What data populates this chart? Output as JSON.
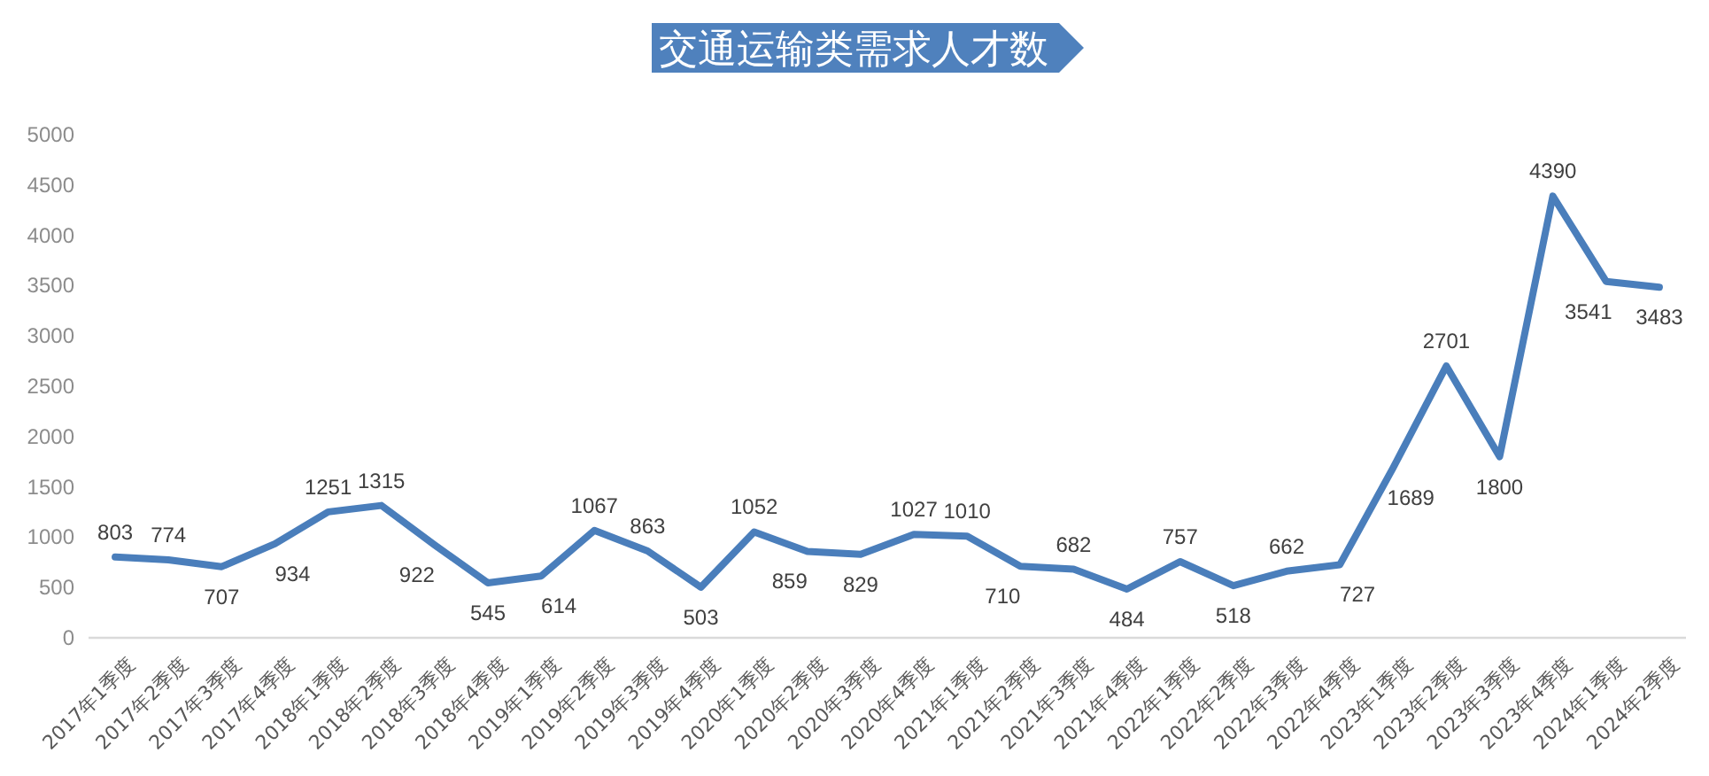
{
  "chart_data": {
    "type": "line",
    "title": "交通运输类需求人才数",
    "categories": [
      "2017年1季度",
      "2017年2季度",
      "2017年3季度",
      "2017年4季度",
      "2018年1季度",
      "2018年2季度",
      "2018年3季度",
      "2018年4季度",
      "2019年1季度",
      "2019年2季度",
      "2019年3季度",
      "2019年4季度",
      "2020年1季度",
      "2020年2季度",
      "2020年3季度",
      "2020年4季度",
      "2021年1季度",
      "2021年2季度",
      "2021年3季度",
      "2021年4季度",
      "2022年1季度",
      "2022年2季度",
      "2022年3季度",
      "2022年4季度",
      "2023年1季度",
      "2023年2季度",
      "2023年3季度",
      "2023年4季度",
      "2024年1季度",
      "2024年2季度"
    ],
    "series": [
      {
        "color": "#4a7ebb",
        "values": [
          803,
          774,
          707,
          934,
          1251,
          1315,
          922,
          545,
          614,
          1067,
          863,
          503,
          1052,
          859,
          829,
          1027,
          1010,
          710,
          682,
          484,
          757,
          518,
          662,
          727,
          1689,
          2701,
          1800,
          4390,
          3541,
          3483
        ]
      }
    ],
    "ylim": [
      0,
      5000
    ],
    "yticks": [
      0,
      500,
      1000,
      1500,
      2000,
      2500,
      3000,
      3500,
      4000,
      4500,
      5000
    ],
    "data_labels": true,
    "grid": false
  }
}
